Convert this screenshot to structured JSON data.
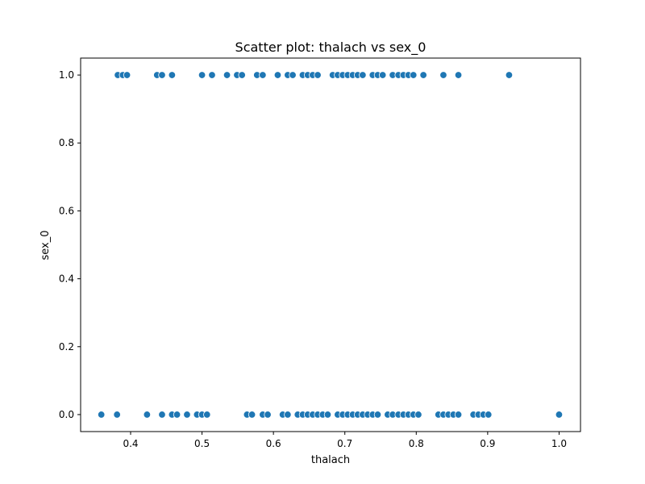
{
  "chart_data": {
    "type": "scatter",
    "title": "Scatter plot: thalach vs sex_0",
    "xlabel": "thalach",
    "ylabel": "sex_0",
    "xlim": [
      0.33,
      1.03
    ],
    "ylim": [
      -0.05,
      1.05
    ],
    "xticks": [
      0.4,
      0.5,
      0.6,
      0.7,
      0.8,
      0.9,
      1.0
    ],
    "xtick_labels": [
      "0.4",
      "0.5",
      "0.6",
      "0.7",
      "0.8",
      "0.9",
      "1.0"
    ],
    "yticks": [
      0.0,
      0.2,
      0.4,
      0.6,
      0.8,
      1.0
    ],
    "ytick_labels": [
      "0.0",
      "0.2",
      "0.4",
      "0.6",
      "0.8",
      "1.0"
    ],
    "grid": false,
    "marker_color": "#1f77b4",
    "series": [
      {
        "name": "",
        "points": [
          {
            "x": 0.382,
            "y": 1
          },
          {
            "x": 0.389,
            "y": 1
          },
          {
            "x": 0.395,
            "y": 1
          },
          {
            "x": 0.437,
            "y": 1
          },
          {
            "x": 0.444,
            "y": 1
          },
          {
            "x": 0.458,
            "y": 1
          },
          {
            "x": 0.5,
            "y": 1
          },
          {
            "x": 0.514,
            "y": 1
          },
          {
            "x": 0.535,
            "y": 1
          },
          {
            "x": 0.549,
            "y": 1
          },
          {
            "x": 0.556,
            "y": 1
          },
          {
            "x": 0.577,
            "y": 1
          },
          {
            "x": 0.585,
            "y": 1
          },
          {
            "x": 0.606,
            "y": 1
          },
          {
            "x": 0.62,
            "y": 1
          },
          {
            "x": 0.627,
            "y": 1
          },
          {
            "x": 0.641,
            "y": 1
          },
          {
            "x": 0.648,
            "y": 1
          },
          {
            "x": 0.655,
            "y": 1
          },
          {
            "x": 0.662,
            "y": 1
          },
          {
            "x": 0.683,
            "y": 1
          },
          {
            "x": 0.69,
            "y": 1
          },
          {
            "x": 0.697,
            "y": 1
          },
          {
            "x": 0.704,
            "y": 1
          },
          {
            "x": 0.711,
            "y": 1
          },
          {
            "x": 0.718,
            "y": 1
          },
          {
            "x": 0.725,
            "y": 1
          },
          {
            "x": 0.739,
            "y": 1
          },
          {
            "x": 0.746,
            "y": 1
          },
          {
            "x": 0.753,
            "y": 1
          },
          {
            "x": 0.767,
            "y": 1
          },
          {
            "x": 0.775,
            "y": 1
          },
          {
            "x": 0.782,
            "y": 1
          },
          {
            "x": 0.789,
            "y": 1
          },
          {
            "x": 0.796,
            "y": 1
          },
          {
            "x": 0.81,
            "y": 1
          },
          {
            "x": 0.838,
            "y": 1
          },
          {
            "x": 0.859,
            "y": 1
          },
          {
            "x": 0.93,
            "y": 1
          },
          {
            "x": 0.359,
            "y": 0
          },
          {
            "x": 0.381,
            "y": 0
          },
          {
            "x": 0.423,
            "y": 0
          },
          {
            "x": 0.444,
            "y": 0
          },
          {
            "x": 0.458,
            "y": 0
          },
          {
            "x": 0.465,
            "y": 0
          },
          {
            "x": 0.479,
            "y": 0
          },
          {
            "x": 0.493,
            "y": 0
          },
          {
            "x": 0.5,
            "y": 0
          },
          {
            "x": 0.507,
            "y": 0
          },
          {
            "x": 0.563,
            "y": 0
          },
          {
            "x": 0.57,
            "y": 0
          },
          {
            "x": 0.585,
            "y": 0
          },
          {
            "x": 0.592,
            "y": 0
          },
          {
            "x": 0.613,
            "y": 0
          },
          {
            "x": 0.62,
            "y": 0
          },
          {
            "x": 0.634,
            "y": 0
          },
          {
            "x": 0.641,
            "y": 0
          },
          {
            "x": 0.648,
            "y": 0
          },
          {
            "x": 0.655,
            "y": 0
          },
          {
            "x": 0.662,
            "y": 0
          },
          {
            "x": 0.669,
            "y": 0
          },
          {
            "x": 0.676,
            "y": 0
          },
          {
            "x": 0.69,
            "y": 0
          },
          {
            "x": 0.697,
            "y": 0
          },
          {
            "x": 0.704,
            "y": 0
          },
          {
            "x": 0.711,
            "y": 0
          },
          {
            "x": 0.718,
            "y": 0
          },
          {
            "x": 0.725,
            "y": 0
          },
          {
            "x": 0.732,
            "y": 0
          },
          {
            "x": 0.739,
            "y": 0
          },
          {
            "x": 0.746,
            "y": 0
          },
          {
            "x": 0.76,
            "y": 0
          },
          {
            "x": 0.767,
            "y": 0
          },
          {
            "x": 0.775,
            "y": 0
          },
          {
            "x": 0.782,
            "y": 0
          },
          {
            "x": 0.789,
            "y": 0
          },
          {
            "x": 0.796,
            "y": 0
          },
          {
            "x": 0.803,
            "y": 0
          },
          {
            "x": 0.831,
            "y": 0
          },
          {
            "x": 0.838,
            "y": 0
          },
          {
            "x": 0.845,
            "y": 0
          },
          {
            "x": 0.852,
            "y": 0
          },
          {
            "x": 0.859,
            "y": 0
          },
          {
            "x": 0.88,
            "y": 0
          },
          {
            "x": 0.887,
            "y": 0
          },
          {
            "x": 0.894,
            "y": 0
          },
          {
            "x": 0.901,
            "y": 0
          },
          {
            "x": 1.0,
            "y": 0
          }
        ]
      }
    ]
  }
}
